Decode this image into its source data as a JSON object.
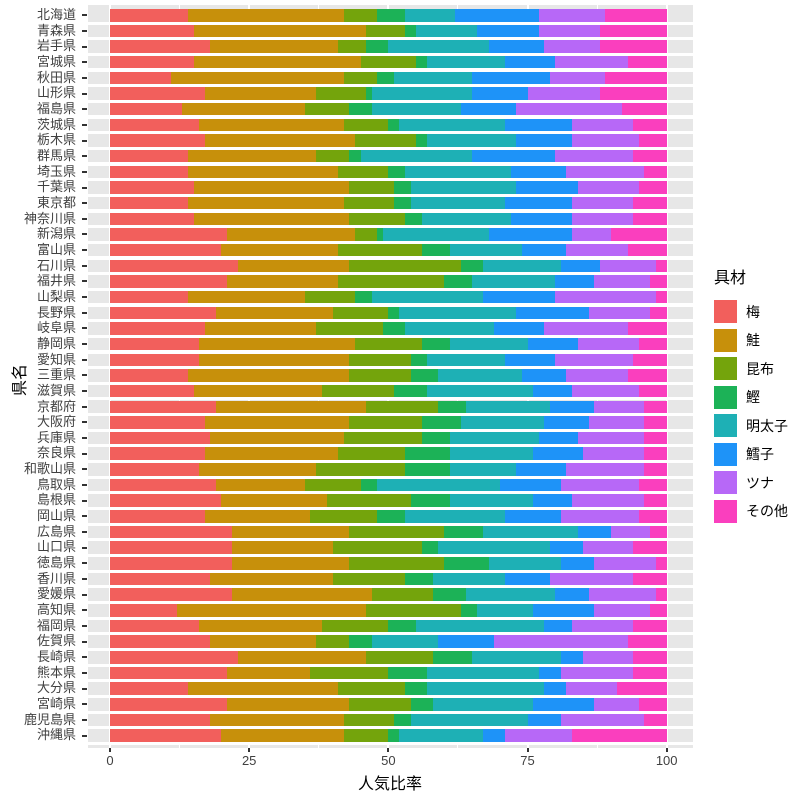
{
  "chart_data": {
    "type": "bar",
    "stacked": true,
    "orientation": "horizontal",
    "title": "",
    "xlabel": "人気比率",
    "ylabel": "県名",
    "legend_title": "具材",
    "legend_position": "right",
    "xlim": [
      0,
      100
    ],
    "x_ticks": [
      0,
      25,
      50,
      75,
      100
    ],
    "x_minor_ticks": [
      12.5,
      37.5,
      62.5,
      87.5
    ],
    "grid": true,
    "panel_background": "#e7e7e7",
    "categories": [
      "北海道",
      "青森県",
      "岩手県",
      "宮城県",
      "秋田県",
      "山形県",
      "福島県",
      "茨城県",
      "栃木県",
      "群馬県",
      "埼玉県",
      "千葉県",
      "東京都",
      "神奈川県",
      "新潟県",
      "富山県",
      "石川県",
      "福井県",
      "山梨県",
      "長野県",
      "岐阜県",
      "静岡県",
      "愛知県",
      "三重県",
      "滋賀県",
      "京都府",
      "大阪府",
      "兵庫県",
      "奈良県",
      "和歌山県",
      "鳥取県",
      "島根県",
      "岡山県",
      "広島県",
      "山口県",
      "徳島県",
      "香川県",
      "愛媛県",
      "高知県",
      "福岡県",
      "佐賀県",
      "長崎県",
      "熊本県",
      "大分県",
      "宮崎県",
      "鹿児島県",
      "沖縄県"
    ],
    "series": [
      {
        "name": "梅",
        "color": "#F25F5C",
        "values": [
          14,
          15,
          18,
          15,
          11,
          17,
          13,
          16,
          17,
          14,
          14,
          15,
          14,
          15,
          21,
          20,
          23,
          21,
          14,
          19,
          17,
          16,
          16,
          14,
          15,
          19,
          17,
          18,
          17,
          16,
          19,
          20,
          17,
          22,
          22,
          22,
          18,
          22,
          12,
          16,
          18,
          23,
          21,
          14,
          21,
          18,
          20
        ]
      },
      {
        "name": "鮭",
        "color": "#C7900B",
        "values": [
          28,
          31,
          23,
          30,
          31,
          20,
          22,
          26,
          27,
          23,
          27,
          28,
          28,
          28,
          23,
          21,
          20,
          20,
          21,
          21,
          20,
          28,
          27,
          29,
          23,
          27,
          26,
          24,
          24,
          21,
          16,
          19,
          19,
          21,
          18,
          21,
          22,
          25,
          34,
          22,
          19,
          23,
          15,
          27,
          22,
          24,
          22
        ]
      },
      {
        "name": "昆布",
        "color": "#74A40C",
        "values": [
          6,
          7,
          5,
          10,
          6,
          9,
          8,
          8,
          11,
          6,
          9,
          8,
          9,
          10,
          4,
          15,
          20,
          19,
          9,
          10,
          12,
          12,
          11,
          11,
          13,
          13,
          13,
          14,
          12,
          16,
          10,
          15,
          12,
          17,
          16,
          17,
          13,
          11,
          17,
          12,
          6,
          12,
          14,
          12,
          11,
          9,
          8
        ]
      },
      {
        "name": "鰹",
        "color": "#1CB257",
        "values": [
          5,
          2,
          4,
          2,
          3,
          1,
          4,
          2,
          2,
          2,
          3,
          3,
          3,
          3,
          1,
          5,
          4,
          5,
          3,
          2,
          4,
          5,
          3,
          5,
          6,
          5,
          7,
          5,
          8,
          8,
          3,
          7,
          5,
          7,
          3,
          8,
          5,
          6,
          3,
          5,
          4,
          7,
          7,
          4,
          4,
          3,
          2
        ]
      },
      {
        "name": "明太子",
        "color": "#1EB0B5",
        "values": [
          9,
          11,
          18,
          14,
          14,
          18,
          16,
          19,
          16,
          20,
          19,
          19,
          17,
          16,
          19,
          13,
          14,
          15,
          20,
          21,
          16,
          14,
          14,
          15,
          19,
          15,
          15,
          16,
          15,
          12,
          22,
          15,
          18,
          17,
          20,
          13,
          13,
          16,
          10,
          23,
          12,
          16,
          20,
          21,
          18,
          21,
          15
        ]
      },
      {
        "name": "鱈子",
        "color": "#1E93F8",
        "values": [
          15,
          11,
          10,
          9,
          14,
          10,
          10,
          12,
          10,
          15,
          10,
          11,
          12,
          11,
          15,
          8,
          7,
          7,
          13,
          13,
          9,
          9,
          9,
          8,
          7,
          8,
          8,
          7,
          9,
          9,
          11,
          7,
          10,
          6,
          6,
          6,
          8,
          6,
          11,
          5,
          10,
          4,
          4,
          4,
          11,
          6,
          4
        ]
      },
      {
        "name": "ツナ",
        "color": "#B768F7",
        "values": [
          12,
          11,
          10,
          13,
          10,
          13,
          19,
          11,
          12,
          14,
          14,
          11,
          11,
          11,
          7,
          11,
          10,
          10,
          18,
          11,
          15,
          11,
          14,
          11,
          12,
          9,
          10,
          12,
          11,
          14,
          14,
          13,
          14,
          7,
          9,
          11,
          15,
          12,
          10,
          11,
          24,
          9,
          13,
          9,
          8,
          15,
          12
        ]
      },
      {
        "name": "その他",
        "color": "#FA3FBE",
        "values": [
          11,
          12,
          12,
          7,
          11,
          12,
          8,
          6,
          5,
          6,
          4,
          5,
          6,
          6,
          10,
          7,
          2,
          3,
          2,
          3,
          7,
          5,
          6,
          7,
          5,
          4,
          4,
          4,
          4,
          4,
          5,
          4,
          5,
          3,
          6,
          2,
          6,
          2,
          3,
          6,
          7,
          6,
          6,
          9,
          5,
          4,
          17
        ]
      }
    ]
  }
}
